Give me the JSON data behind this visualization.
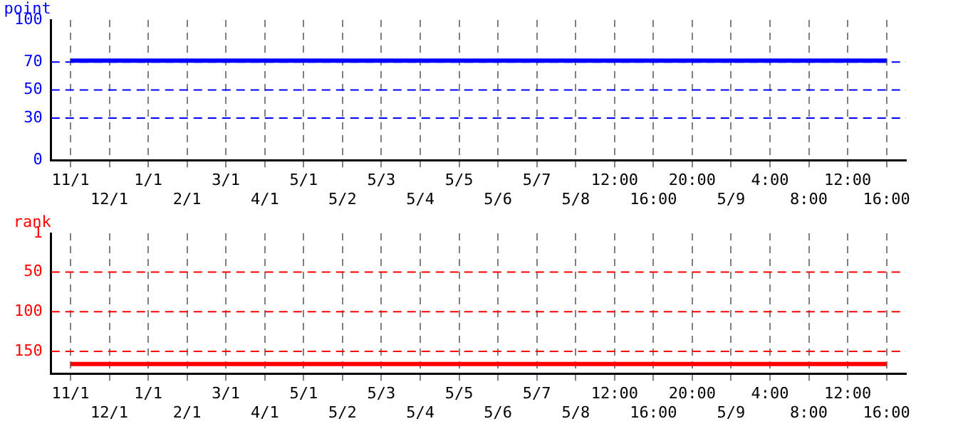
{
  "chart_data": [
    {
      "type": "line",
      "ylabel": "point",
      "categories": [
        "11/1",
        "12/1",
        "1/1",
        "2/1",
        "3/1",
        "4/1",
        "5/1",
        "5/2",
        "5/3",
        "5/4",
        "5/5",
        "5/6",
        "5/7",
        "5/8",
        "12:00",
        "16:00",
        "20:00",
        "5/9",
        "4:00",
        "8:00",
        "12:00",
        "16:00"
      ],
      "series": [
        {
          "color": "#0000ff",
          "values": [
            71,
            71,
            71,
            71,
            71,
            71,
            71,
            71,
            71,
            71,
            71,
            71,
            71,
            71,
            71,
            71,
            71,
            71,
            71,
            71,
            71,
            71
          ]
        }
      ],
      "ylim": [
        0,
        100
      ],
      "yticks": [
        0,
        30,
        50,
        70,
        100
      ],
      "grid": "x",
      "legend": false,
      "marker": "none",
      "line_style": "solid",
      "ref_lines": [
        {
          "axis": "y",
          "value": 30,
          "color": "#0000ff",
          "line_style": "dashed"
        },
        {
          "axis": "y",
          "value": 50,
          "color": "#0000ff",
          "line_style": "dashed"
        },
        {
          "axis": "y",
          "value": 70,
          "color": "#0000ff",
          "line_style": "dashed"
        }
      ]
    },
    {
      "type": "line",
      "ylabel": "rank",
      "categories": [
        "11/1",
        "12/1",
        "1/1",
        "2/1",
        "3/1",
        "4/1",
        "5/1",
        "5/2",
        "5/3",
        "5/4",
        "5/5",
        "5/6",
        "5/7",
        "5/8",
        "12:00",
        "16:00",
        "20:00",
        "5/9",
        "4:00",
        "8:00",
        "12:00",
        "16:00"
      ],
      "series": [
        {
          "color": "#ff0000",
          "values": [
            166,
            166,
            166,
            166,
            166,
            166,
            166,
            166,
            166,
            166,
            166,
            166,
            166,
            166,
            166,
            166,
            166,
            166,
            166,
            166,
            166,
            166
          ]
        }
      ],
      "ylim": [
        178,
        1
      ],
      "yticks": [
        1,
        50,
        100,
        150
      ],
      "grid": "x",
      "legend": false,
      "marker": "none",
      "line_style": "solid",
      "ref_lines": [
        {
          "axis": "y",
          "value": 50,
          "color": "#ff0000",
          "line_style": "dashed"
        },
        {
          "axis": "y",
          "value": 100,
          "color": "#ff0000",
          "line_style": "dashed"
        },
        {
          "axis": "y",
          "value": 150,
          "color": "#ff0000",
          "line_style": "dashed"
        }
      ]
    }
  ]
}
